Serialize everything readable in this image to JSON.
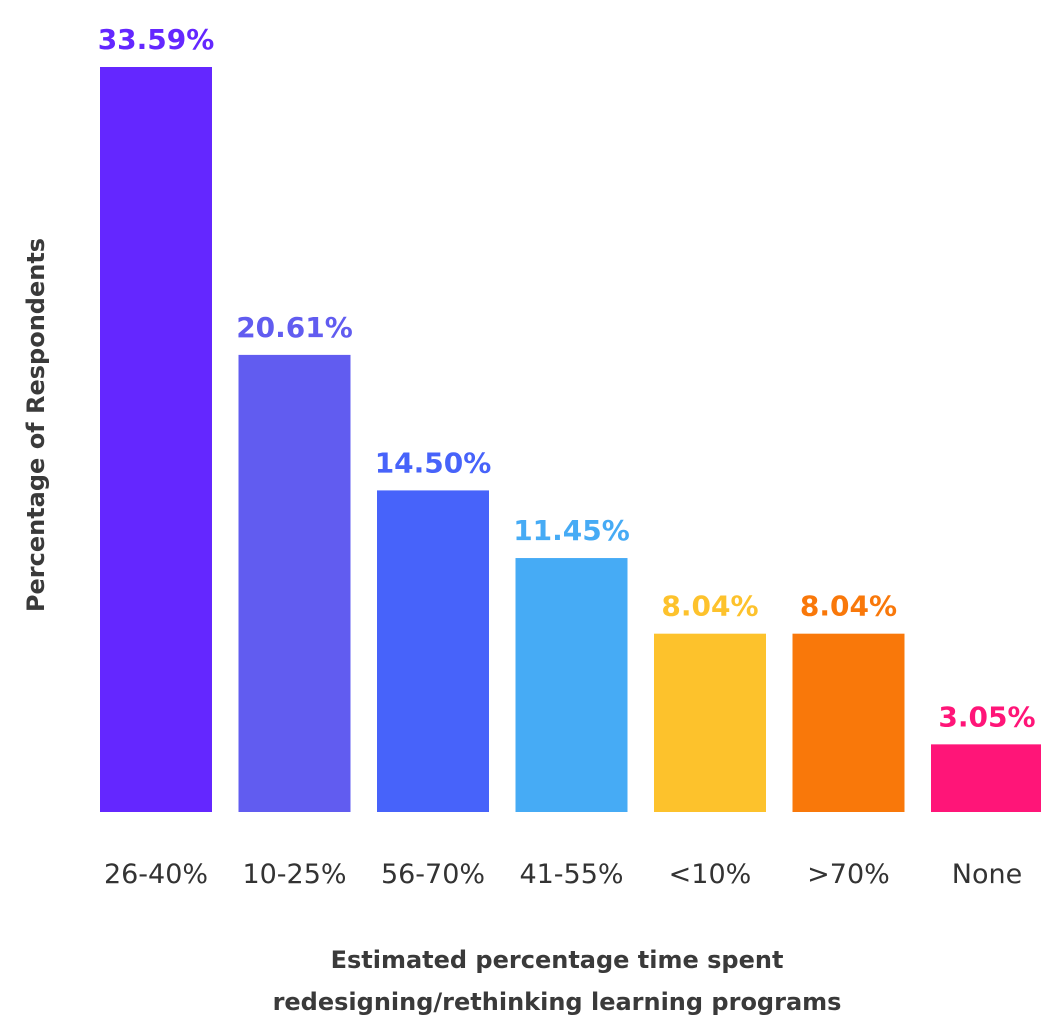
{
  "chart_data": {
    "type": "bar",
    "categories": [
      "26-40%",
      "10-25%",
      "56-70%",
      "41-55%",
      "<10%",
      ">70%",
      "None"
    ],
    "values": [
      33.59,
      20.61,
      14.5,
      11.45,
      8.04,
      8.04,
      3.05
    ],
    "value_labels": [
      "33.59%",
      "20.61%",
      "14.50%",
      "11.45%",
      "8.04%",
      "8.04%",
      "3.05%"
    ],
    "colors": [
      "#6427FF",
      "#615CF0",
      "#4763FA",
      "#46ABF5",
      "#FDC22C",
      "#F9780A",
      "#FF1578"
    ],
    "title": "",
    "xlabel_lines": [
      "Estimated percentage time spent",
      "redesigning/rethinking learning programs"
    ],
    "ylabel": "Percentage of Respondents",
    "ylim": [
      0,
      33.59
    ],
    "grid": false,
    "legend": "none"
  }
}
